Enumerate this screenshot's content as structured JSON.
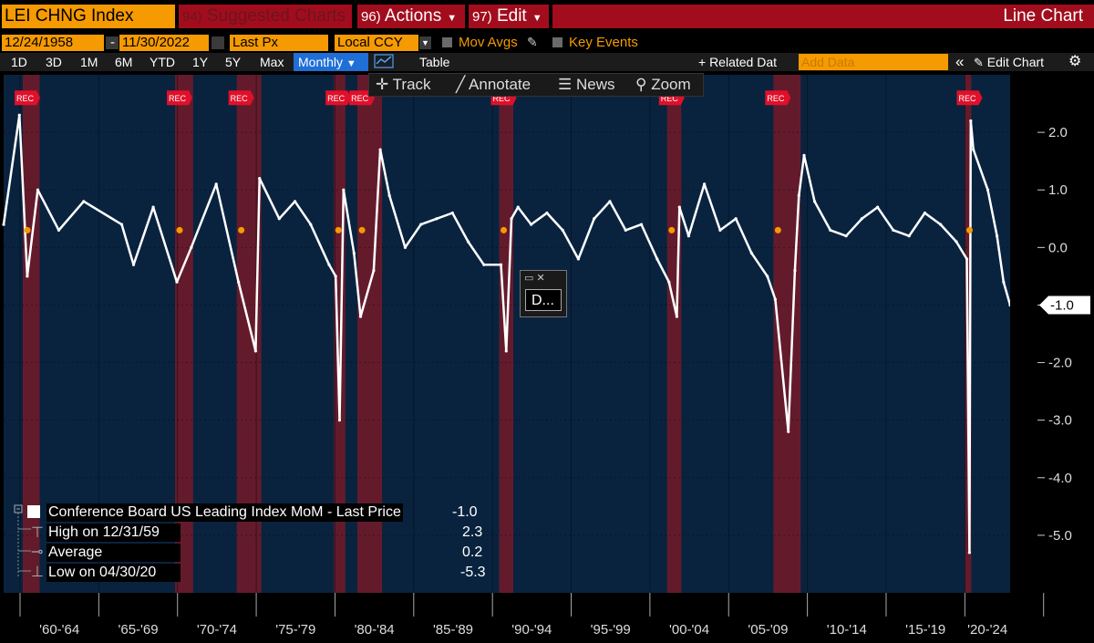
{
  "toolbar": {
    "ticker": "LEI CHNG Index",
    "suggested_num": "94)",
    "suggested_label": "Suggested Charts",
    "actions_num": "96)",
    "actions_label": "Actions",
    "edit_num": "97)",
    "edit_label": "Edit",
    "chart_type": "Line Chart"
  },
  "settings": {
    "start_date": "12/24/1958",
    "end_date": "11/30/2022",
    "date_sep": "-",
    "field": "Last Px",
    "currency": "Local CCY",
    "mov_avgs": "Mov Avgs",
    "key_events": "Key Events"
  },
  "periods": {
    "buttons": [
      "1D",
      "3D",
      "1M",
      "6M",
      "YTD",
      "1Y",
      "5Y",
      "Max"
    ],
    "frequency": "Monthly",
    "table": "Table",
    "related": "+ Related Dat",
    "add_data_placeholder": "Add Data",
    "collapse": "«",
    "edit_chart": "Edit Chart",
    "settings_icon": "gear-icon"
  },
  "tools": {
    "track": "Track",
    "annotate": "Annotate",
    "news": "News",
    "zoom": "Zoom"
  },
  "mini_window": {
    "label": "D..."
  },
  "legend": {
    "series_name": "Conference Board US Leading Index MoM - Last Price",
    "last": "-1.0",
    "high_label": "High on 12/31/59",
    "high": "2.3",
    "avg_label": "Average",
    "avg": "0.2",
    "low_label": "Low on 04/30/20",
    "low": "-5.3"
  },
  "colors": {
    "plot_bg": "#09233f",
    "line": "#ffffff",
    "recession": "#6e1b2a",
    "marker": "#f59a00",
    "accent_orange": "#f59a00",
    "toolbar_red": "#a10d1d"
  },
  "chart_data": {
    "type": "line",
    "title": "",
    "series": [
      {
        "name": "Conference Board US Leading Index MoM - Last Price",
        "x": [
          "1958-12",
          "1959-12",
          "1960-06",
          "1961-02",
          "1962-06",
          "1964-01",
          "1966-06",
          "1967-03",
          "1968-06",
          "1969-12",
          "1970-11",
          "1972-06",
          "1973-11",
          "1974-12",
          "1975-03",
          "1976-06",
          "1977-06",
          "1978-06",
          "1979-08",
          "1980-01",
          "1980-04",
          "1980-07",
          "1981-03",
          "1981-08",
          "1982-06",
          "1982-11",
          "1983-06",
          "1984-06",
          "1985-06",
          "1986-06",
          "1987-06",
          "1988-06",
          "1989-06",
          "1990-07",
          "1990-11",
          "1991-03",
          "1991-08",
          "1992-06",
          "1993-06",
          "1994-06",
          "1995-06",
          "1996-06",
          "1997-06",
          "1998-06",
          "1999-06",
          "2000-06",
          "2001-03",
          "2001-09",
          "2001-11",
          "2002-06",
          "2003-06",
          "2004-06",
          "2005-06",
          "2006-06",
          "2007-06",
          "2007-12",
          "2008-10",
          "2009-03",
          "2009-06",
          "2009-10",
          "2010-06",
          "2011-06",
          "2012-06",
          "2013-06",
          "2014-06",
          "2015-06",
          "2016-06",
          "2017-06",
          "2018-06",
          "2019-06",
          "2020-02",
          "2020-04",
          "2020-05",
          "2020-07",
          "2021-06",
          "2022-01",
          "2022-06",
          "2022-11"
        ],
        "values": [
          0.4,
          2.3,
          -0.5,
          1.0,
          0.3,
          0.8,
          0.4,
          -0.3,
          0.7,
          -0.6,
          0.0,
          1.1,
          -0.6,
          -1.8,
          1.2,
          0.5,
          0.8,
          0.4,
          -0.3,
          -0.5,
          -3.0,
          1.0,
          -0.1,
          -1.2,
          -0.4,
          1.7,
          0.9,
          0.0,
          0.4,
          0.5,
          0.6,
          0.1,
          -0.3,
          -0.3,
          -1.8,
          0.5,
          0.7,
          0.4,
          0.6,
          0.3,
          -0.2,
          0.5,
          0.8,
          0.3,
          0.4,
          -0.2,
          -0.6,
          -1.2,
          0.7,
          0.2,
          1.1,
          0.3,
          0.5,
          -0.1,
          -0.5,
          -0.9,
          -3.2,
          -0.4,
          0.9,
          1.6,
          0.8,
          0.3,
          0.2,
          0.5,
          0.7,
          0.3,
          0.2,
          0.6,
          0.4,
          0.1,
          -0.2,
          -5.3,
          2.2,
          1.7,
          1.0,
          0.2,
          -0.6,
          -1.0
        ]
      }
    ],
    "recessions": [
      [
        "1960-04",
        "1961-02"
      ],
      [
        "1969-12",
        "1970-11"
      ],
      [
        "1973-11",
        "1975-03"
      ],
      [
        "1980-01",
        "1980-07"
      ],
      [
        "1981-07",
        "1982-11"
      ],
      [
        "1990-07",
        "1991-03"
      ],
      [
        "2001-03",
        "2001-11"
      ],
      [
        "2007-12",
        "2009-06"
      ],
      [
        "2020-02",
        "2020-04"
      ]
    ],
    "x_tick_labels": [
      "'60-'64",
      "'65-'69",
      "'70-'74",
      "'75-'79",
      "'80-'84",
      "'85-'89",
      "'90-'94",
      "'95-'99",
      "'00-'04",
      "'05-'09",
      "'10-'14",
      "'15-'19",
      "'20-'24"
    ],
    "y_ticks": [
      "2.0",
      "1.0",
      "0.0",
      "-1.0",
      "-2.0",
      "-3.0",
      "-4.0",
      "-5.0"
    ],
    "y_tick_values": [
      2,
      1,
      0,
      -1,
      -2,
      -3,
      -4,
      -5
    ],
    "last_value_label": "-1.0",
    "last_value": -1.0,
    "event_label": "REC",
    "ylim": [
      -6.0,
      3.0
    ],
    "xlim": [
      "1958-12",
      "2022-11"
    ],
    "grid": "vertical and horizontal"
  }
}
